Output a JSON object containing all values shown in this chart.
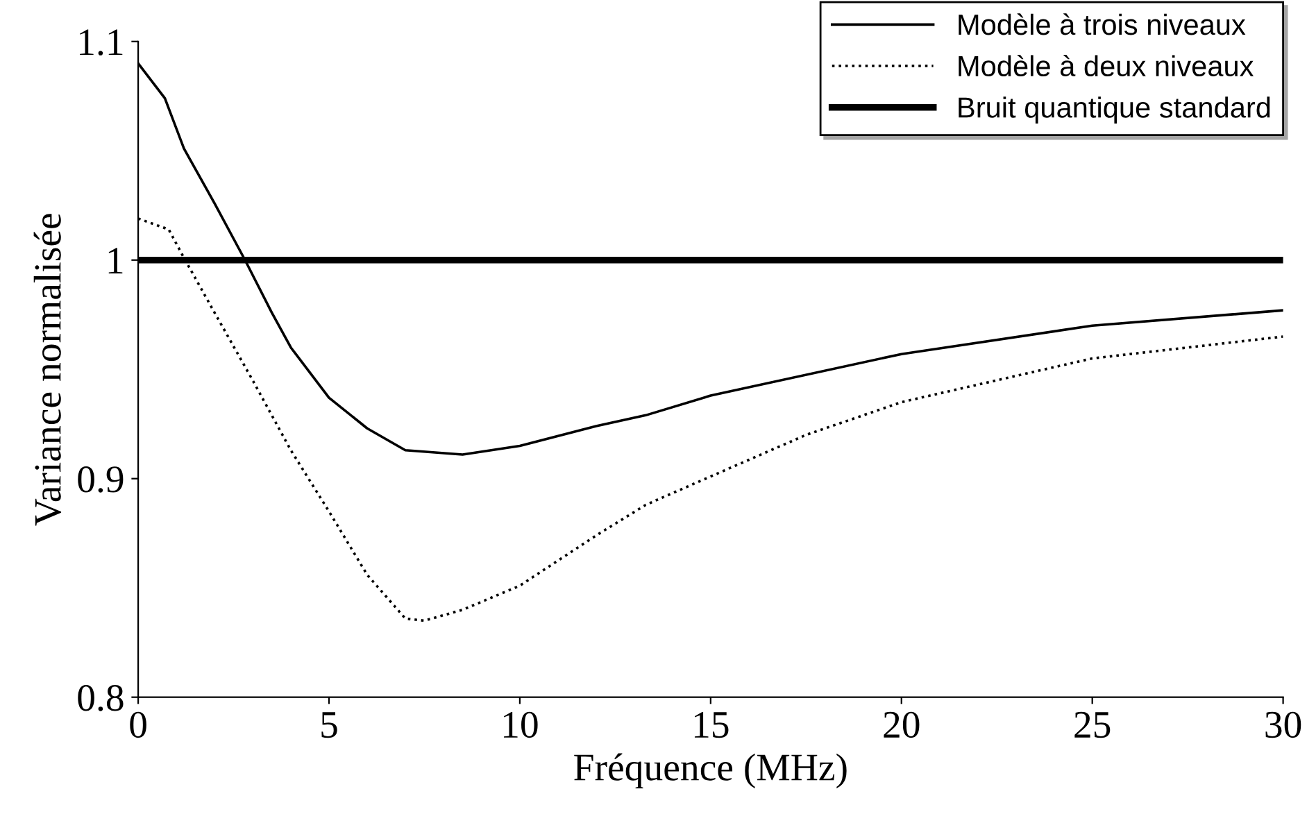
{
  "chart_data": {
    "type": "line",
    "xlabel": "Fréquence (MHz)",
    "ylabel": "Variance normalisée",
    "xlim": [
      0,
      30
    ],
    "xticks": [
      0,
      5,
      10,
      15,
      20,
      25,
      30
    ],
    "ylim": [
      0.8,
      1.1
    ],
    "yticks": [
      0.8,
      0.9,
      1,
      1.1
    ],
    "grid": false,
    "legend": "top right",
    "series": [
      {
        "name": "Modèle à trois niveaux",
        "color": "#000000",
        "line_style": "solid",
        "x": [
          0,
          0.7,
          1.2,
          2,
          2.8,
          3.5,
          4,
          5,
          6,
          7,
          8.5,
          10,
          12,
          13.3,
          15,
          20,
          25,
          30
        ],
        "values": [
          1.09,
          1.074,
          1.051,
          1.026,
          1.0,
          0.976,
          0.96,
          0.937,
          0.923,
          0.913,
          0.911,
          0.915,
          0.924,
          0.929,
          0.938,
          0.957,
          0.97,
          0.977
        ]
      },
      {
        "name": "Modèle à deux niveaux",
        "color": "#000000",
        "line_style": "dotted",
        "x": [
          0,
          0.8,
          1.2,
          2,
          3,
          4,
          5,
          6,
          7,
          7.5,
          8.5,
          10,
          12,
          13.3,
          15,
          17.5,
          20,
          25,
          30
        ],
        "values": [
          1.019,
          1.014,
          1.001,
          0.976,
          0.945,
          0.913,
          0.885,
          0.856,
          0.836,
          0.835,
          0.84,
          0.851,
          0.874,
          0.888,
          0.901,
          0.92,
          0.935,
          0.955,
          0.965
        ]
      },
      {
        "name": "Bruit quantique standard",
        "color": "#000000",
        "line_style": "solid",
        "x": [
          0,
          30
        ],
        "values": [
          1,
          1
        ]
      }
    ]
  }
}
